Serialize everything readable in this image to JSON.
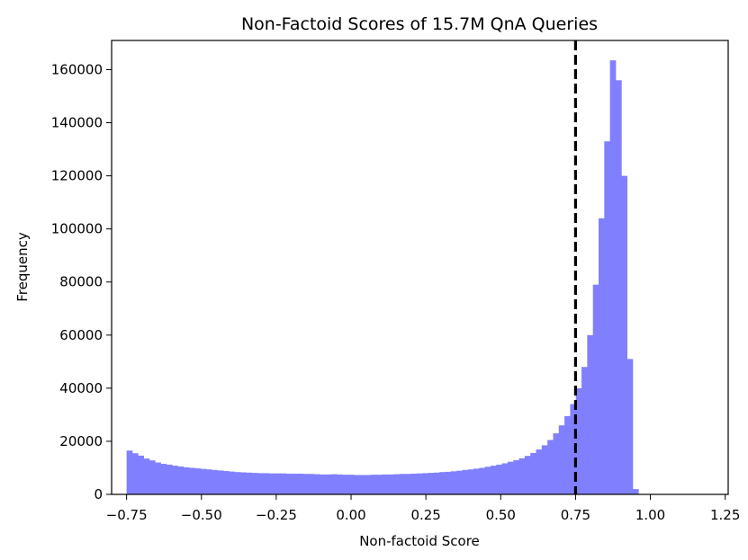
{
  "chart_data": {
    "type": "bar",
    "title": "Non-Factoid Scores of 15.7M QnA Queries",
    "xlabel": "Non-factoid Score",
    "ylabel": "Frequency",
    "xlim": [
      -0.8,
      1.26
    ],
    "ylim": [
      0,
      171000
    ],
    "xticks": [
      -0.75,
      -0.5,
      -0.25,
      0.0,
      0.25,
      0.5,
      0.75,
      1.0,
      1.25
    ],
    "xtick_labels": [
      "−0.75",
      "−0.50",
      "−0.25",
      "0.00",
      "0.25",
      "0.50",
      "0.75",
      "1.00",
      "1.25"
    ],
    "yticks": [
      0,
      20000,
      40000,
      60000,
      80000,
      100000,
      120000,
      140000,
      160000
    ],
    "ytick_labels": [
      "0",
      "20000",
      "40000",
      "60000",
      "80000",
      "100000",
      "120000",
      "140000",
      "160000"
    ],
    "bar_color": "#8080ff",
    "threshold": {
      "x": 0.75,
      "color": "#000000",
      "style": "dashed"
    },
    "bins": {
      "start": -0.75,
      "width": 0.019,
      "values": [
        16500,
        15500,
        14600,
        13500,
        12800,
        12000,
        11500,
        11200,
        10800,
        10500,
        10200,
        10000,
        9800,
        9600,
        9400,
        9200,
        9000,
        8800,
        8600,
        8400,
        8300,
        8200,
        8100,
        8000,
        8000,
        7900,
        7900,
        7900,
        7800,
        7800,
        7800,
        7700,
        7700,
        7600,
        7500,
        7500,
        7600,
        7500,
        7400,
        7400,
        7300,
        7300,
        7300,
        7400,
        7400,
        7500,
        7500,
        7600,
        7700,
        7700,
        7800,
        7900,
        8000,
        8100,
        8200,
        8400,
        8500,
        8700,
        8900,
        9200,
        9400,
        9700,
        10000,
        10400,
        10800,
        11200,
        11700,
        12300,
        12900,
        13600,
        14500,
        15600,
        16900,
        18500,
        20500,
        23000,
        26000,
        29500,
        34000,
        40000,
        48000,
        60000,
        79000,
        104000,
        133000,
        163500,
        156000,
        120000,
        51000,
        2000
      ]
    }
  }
}
